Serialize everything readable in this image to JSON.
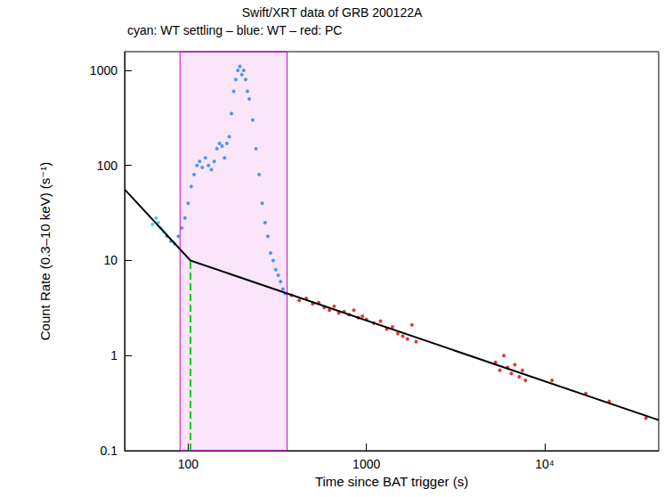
{
  "chart_data": {
    "type": "scatter",
    "title": "Swift/XRT data of GRB 200122A",
    "subtitle": "cyan: WT settling – blue: WT – red: PC",
    "x_label": "Time since BAT trigger (s)",
    "y_label": "Count Rate (0.3–10 keV) (s⁻¹)",
    "log": true,
    "grid": false,
    "xlim": [
      44,
      43600
    ],
    "ylim": [
      0.1,
      1570
    ],
    "xticks": [
      100,
      1000,
      {
        "value": 10000,
        "label": "10⁴"
      }
    ],
    "yticks": [
      0.1,
      1,
      10,
      100,
      1000
    ],
    "series": [
      {
        "color": "#00d0ff",
        "marker": "circle",
        "x": [
          63,
          66,
          68,
          70,
          73
        ],
        "values": [
          24,
          28,
          25,
          22,
          20
        ]
      },
      {
        "color": "#1e7fff",
        "marker": "circle",
        "x": [
          76,
          80,
          84,
          88,
          92,
          96,
          100,
          104,
          108,
          112,
          116,
          120,
          125,
          130,
          135,
          140,
          145,
          150,
          155,
          160,
          165,
          170,
          175,
          180,
          185,
          190,
          195,
          200,
          205,
          210,
          215,
          220,
          230,
          240,
          250,
          260,
          270,
          280,
          290,
          300,
          310,
          320,
          330,
          340,
          350
        ],
        "values": [
          18,
          16,
          15,
          18,
          22,
          28,
          40,
          60,
          80,
          100,
          110,
          95,
          120,
          100,
          90,
          110,
          150,
          170,
          160,
          120,
          170,
          200,
          350,
          600,
          800,
          1000,
          1100,
          900,
          1000,
          800,
          600,
          500,
          300,
          150,
          80,
          40,
          25,
          18,
          12,
          10,
          8,
          7,
          6,
          5,
          4.5
        ]
      },
      {
        "color": "#e00000",
        "marker": "circle",
        "x": [
          380,
          420,
          460,
          500,
          540,
          580,
          620,
          660,
          700,
          750,
          800,
          850,
          900,
          950,
          1000,
          1100,
          1200,
          1300,
          1400,
          1500,
          1600,
          1700,
          1800,
          1900,
          5300,
          5600,
          5900,
          6200,
          6500,
          6800,
          7200,
          7500,
          7800,
          11000,
          17000,
          23000,
          37000
        ],
        "values": [
          4.3,
          3.8,
          4.0,
          3.5,
          3.6,
          3.2,
          3.0,
          3.3,
          2.8,
          2.9,
          2.7,
          3.0,
          2.5,
          2.6,
          2.4,
          2.2,
          2.3,
          1.9,
          2.0,
          1.7,
          1.6,
          1.5,
          2.1,
          1.4,
          0.85,
          0.7,
          1.0,
          0.75,
          0.65,
          0.8,
          0.6,
          0.7,
          0.55,
          0.55,
          0.4,
          0.33,
          0.22
        ]
      },
      {
        "type": "line",
        "color": "#000000",
        "line_style": "solid",
        "x": [
          44,
          103,
          43600
        ],
        "values": [
          56,
          10,
          0.21
        ]
      }
    ],
    "break_line": {
      "x": 103,
      "values": [
        0.1,
        10
      ],
      "color": "#00cc00",
      "line_style": "dashed"
    },
    "excluded_region": {
      "x": [
        90,
        359
      ],
      "color": "#cc00cc"
    }
  }
}
